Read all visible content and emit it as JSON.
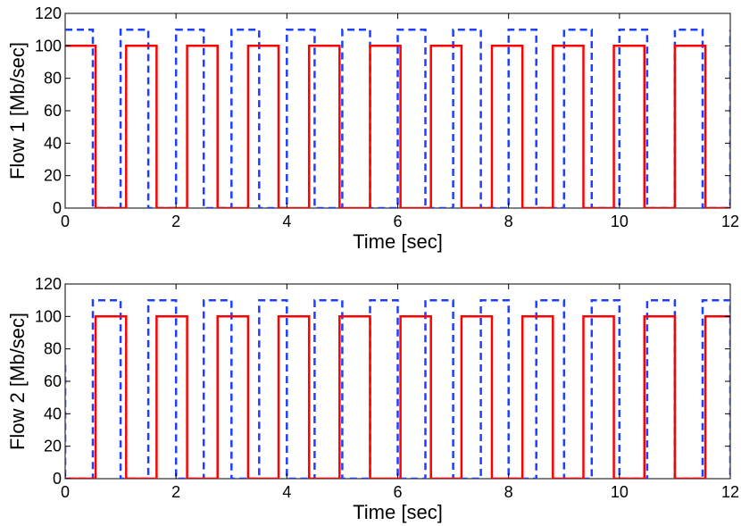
{
  "chart_data": [
    {
      "type": "line",
      "ylabel": "Flow 1  [Mb/sec]",
      "xlabel": "Time [sec]",
      "xlim": [
        0,
        12
      ],
      "ylim": [
        0,
        120
      ],
      "xticks": [
        0,
        2,
        4,
        6,
        8,
        10,
        12
      ],
      "yticks": [
        0,
        20,
        40,
        60,
        80,
        100,
        120
      ],
      "grid": false,
      "series": [
        {
          "style": "dashed",
          "color": "#1f3fff",
          "points": [
            [
              0,
              110
            ],
            [
              0.5,
              110
            ],
            [
              0.5,
              0
            ],
            [
              1.0,
              0
            ],
            [
              1.0,
              110
            ],
            [
              1.5,
              110
            ],
            [
              1.5,
              0
            ],
            [
              2.0,
              0
            ],
            [
              2.0,
              110
            ],
            [
              2.5,
              110
            ],
            [
              2.5,
              0
            ],
            [
              3.0,
              0
            ],
            [
              3.0,
              110
            ],
            [
              3.5,
              110
            ],
            [
              3.5,
              0
            ],
            [
              4.0,
              0
            ],
            [
              4.0,
              110
            ],
            [
              4.5,
              110
            ],
            [
              4.5,
              0
            ],
            [
              5.0,
              0
            ],
            [
              5.0,
              110
            ],
            [
              5.5,
              110
            ],
            [
              5.5,
              0
            ],
            [
              6.0,
              0
            ],
            [
              6.0,
              110
            ],
            [
              6.5,
              110
            ],
            [
              6.5,
              0
            ],
            [
              7.0,
              0
            ],
            [
              7.0,
              110
            ],
            [
              7.5,
              110
            ],
            [
              7.5,
              0
            ],
            [
              8.0,
              0
            ],
            [
              8.0,
              110
            ],
            [
              8.5,
              110
            ],
            [
              8.5,
              0
            ],
            [
              9.0,
              0
            ],
            [
              9.0,
              110
            ],
            [
              9.5,
              110
            ],
            [
              9.5,
              0
            ],
            [
              10.0,
              0
            ],
            [
              10.0,
              110
            ],
            [
              10.5,
              110
            ],
            [
              10.5,
              0
            ],
            [
              11.0,
              0
            ],
            [
              11.0,
              110
            ],
            [
              11.5,
              110
            ],
            [
              11.5,
              0
            ],
            [
              12.0,
              0
            ],
            [
              12.0,
              110
            ]
          ]
        },
        {
          "style": "solid",
          "color": "#ff0000",
          "points": [
            [
              0,
              100
            ],
            [
              0.55,
              100
            ],
            [
              0.55,
              0
            ],
            [
              1.1,
              0
            ],
            [
              1.1,
              100
            ],
            [
              1.65,
              100
            ],
            [
              1.65,
              0
            ],
            [
              2.2,
              0
            ],
            [
              2.2,
              100
            ],
            [
              2.75,
              100
            ],
            [
              2.75,
              0
            ],
            [
              3.3,
              0
            ],
            [
              3.3,
              100
            ],
            [
              3.85,
              100
            ],
            [
              3.85,
              0
            ],
            [
              4.4,
              0
            ],
            [
              4.4,
              100
            ],
            [
              4.95,
              100
            ],
            [
              4.95,
              0
            ],
            [
              5.5,
              0
            ],
            [
              5.5,
              100
            ],
            [
              6.05,
              100
            ],
            [
              6.05,
              0
            ],
            [
              6.6,
              0
            ],
            [
              6.6,
              100
            ],
            [
              7.15,
              100
            ],
            [
              7.15,
              0
            ],
            [
              7.7,
              0
            ],
            [
              7.7,
              100
            ],
            [
              8.25,
              100
            ],
            [
              8.25,
              0
            ],
            [
              8.8,
              0
            ],
            [
              8.8,
              100
            ],
            [
              9.35,
              100
            ],
            [
              9.35,
              0
            ],
            [
              9.9,
              0
            ],
            [
              9.9,
              100
            ],
            [
              10.45,
              100
            ],
            [
              10.45,
              0
            ],
            [
              11.0,
              0
            ],
            [
              11.0,
              100
            ],
            [
              11.55,
              100
            ],
            [
              11.55,
              0
            ],
            [
              12.0,
              0
            ]
          ]
        }
      ]
    },
    {
      "type": "line",
      "ylabel": "Flow 2 [Mb/sec]",
      "xlabel": "Time [sec]",
      "xlim": [
        0,
        12
      ],
      "ylim": [
        0,
        120
      ],
      "xticks": [
        0,
        2,
        4,
        6,
        8,
        10,
        12
      ],
      "yticks": [
        0,
        20,
        40,
        60,
        80,
        100,
        120
      ],
      "grid": false,
      "series": [
        {
          "style": "dashed",
          "color": "#1f3fff",
          "points": [
            [
              0,
              70
            ],
            [
              0.0,
              0
            ],
            [
              0.5,
              0
            ],
            [
              0.5,
              110
            ],
            [
              1.0,
              110
            ],
            [
              1.0,
              0
            ],
            [
              1.5,
              0
            ],
            [
              1.5,
              110
            ],
            [
              2.0,
              110
            ],
            [
              2.0,
              0
            ],
            [
              2.5,
              0
            ],
            [
              2.5,
              110
            ],
            [
              3.0,
              110
            ],
            [
              3.0,
              0
            ],
            [
              3.5,
              0
            ],
            [
              3.5,
              110
            ],
            [
              4.0,
              110
            ],
            [
              4.0,
              0
            ],
            [
              4.5,
              0
            ],
            [
              4.5,
              110
            ],
            [
              5.0,
              110
            ],
            [
              5.0,
              0
            ],
            [
              5.5,
              0
            ],
            [
              5.5,
              110
            ],
            [
              6.0,
              110
            ],
            [
              6.0,
              0
            ],
            [
              6.5,
              0
            ],
            [
              6.5,
              110
            ],
            [
              7.0,
              110
            ],
            [
              7.0,
              0
            ],
            [
              7.5,
              0
            ],
            [
              7.5,
              110
            ],
            [
              8.0,
              110
            ],
            [
              8.0,
              0
            ],
            [
              8.5,
              0
            ],
            [
              8.5,
              110
            ],
            [
              9.0,
              110
            ],
            [
              9.0,
              0
            ],
            [
              9.5,
              0
            ],
            [
              9.5,
              110
            ],
            [
              10.0,
              110
            ],
            [
              10.0,
              0
            ],
            [
              10.5,
              0
            ],
            [
              10.5,
              110
            ],
            [
              11.0,
              110
            ],
            [
              11.0,
              0
            ],
            [
              11.5,
              0
            ],
            [
              11.5,
              110
            ],
            [
              12.0,
              110
            ],
            [
              12.0,
              0
            ]
          ]
        },
        {
          "style": "solid",
          "color": "#ff0000",
          "points": [
            [
              0,
              0
            ],
            [
              0.55,
              0
            ],
            [
              0.55,
              100
            ],
            [
              1.1,
              100
            ],
            [
              1.1,
              0
            ],
            [
              1.65,
              0
            ],
            [
              1.65,
              100
            ],
            [
              2.2,
              100
            ],
            [
              2.2,
              0
            ],
            [
              2.75,
              0
            ],
            [
              2.75,
              100
            ],
            [
              3.3,
              100
            ],
            [
              3.3,
              0
            ],
            [
              3.85,
              0
            ],
            [
              3.85,
              100
            ],
            [
              4.4,
              100
            ],
            [
              4.4,
              0
            ],
            [
              4.95,
              0
            ],
            [
              4.95,
              100
            ],
            [
              5.5,
              100
            ],
            [
              5.5,
              0
            ],
            [
              6.05,
              0
            ],
            [
              6.05,
              100
            ],
            [
              6.6,
              100
            ],
            [
              6.6,
              0
            ],
            [
              7.15,
              0
            ],
            [
              7.15,
              100
            ],
            [
              7.7,
              100
            ],
            [
              7.7,
              0
            ],
            [
              8.25,
              0
            ],
            [
              8.25,
              100
            ],
            [
              8.8,
              100
            ],
            [
              8.8,
              0
            ],
            [
              9.35,
              0
            ],
            [
              9.35,
              100
            ],
            [
              9.9,
              100
            ],
            [
              9.9,
              0
            ],
            [
              10.45,
              0
            ],
            [
              10.45,
              100
            ],
            [
              11.0,
              100
            ],
            [
              11.0,
              0
            ],
            [
              11.55,
              0
            ],
            [
              11.55,
              100
            ],
            [
              12.0,
              100
            ]
          ]
        }
      ]
    }
  ]
}
